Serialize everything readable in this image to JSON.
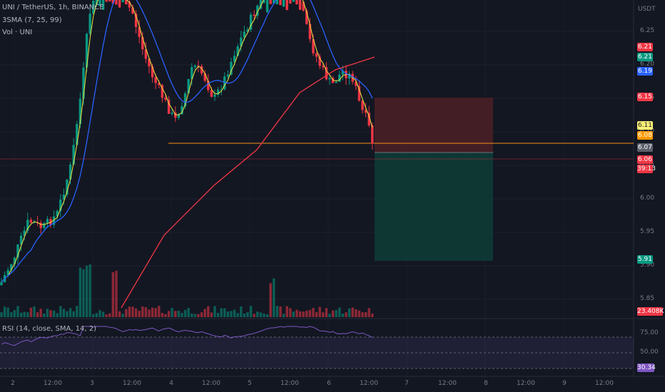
{
  "header": {
    "symbol_line": "UNI / TetherUS, 1h, BINANCE",
    "sma_line": "3SMA (7, 25, 99)",
    "vol_line": "Vol · UNI",
    "rsi_line": "RSI (14, close, SMA, 14, 2)"
  },
  "price_axis": {
    "currency": "USDT",
    "ticks": [
      "6.25",
      "6.20",
      "6.15",
      "6.10",
      "6.05",
      "6.00",
      "5.95",
      "5.90",
      "5.85"
    ]
  },
  "price_tags": [
    {
      "label": "6.21",
      "color": "#f23645"
    },
    {
      "label": "6.21",
      "color": "#089981"
    },
    {
      "label": "6.19",
      "color": "#2962ff"
    },
    {
      "label": "6.15",
      "color": "#f23645"
    },
    {
      "label": "6.11",
      "color": "#fff176"
    },
    {
      "label": "6.08",
      "color": "#ff9800"
    },
    {
      "label": "6.07",
      "color": "#5d606b"
    },
    {
      "label": "6.06",
      "color": "#f23645"
    },
    {
      "label": "39:13",
      "color": "#f23645"
    },
    {
      "label": "5.91",
      "color": "#089981"
    },
    {
      "label": "23.408K",
      "color": "#f23645"
    }
  ],
  "rsi_axis": {
    "ticks": [
      "75.00",
      "50.00"
    ],
    "value": "30.34",
    "value_color": "#7e57c2"
  },
  "time_axis": {
    "ticks": [
      "2",
      "12:00",
      "3",
      "12:00",
      "4",
      "12:00",
      "5",
      "12:00",
      "6",
      "12:00",
      "7",
      "12:00",
      "8",
      "12:00",
      "9",
      "12:00"
    ]
  },
  "colors": {
    "up": "#089981",
    "down": "#f23645",
    "sma7": "#f0e442",
    "sma25": "#2962ff",
    "sma99": "#f23645",
    "rsi": "#7e57c2",
    "long_target": "#0e3b36",
    "long_stop": "#4a1f26",
    "entry_line": "#f7931a"
  },
  "chart_data": {
    "type": "candlestick",
    "title": "UNI / TetherUS, 1h, BINANCE",
    "ylim": [
      5.83,
      6.28
    ],
    "indicators": [
      "SMA 7",
      "SMA 25",
      "SMA 99",
      "Volume",
      "RSI 14"
    ],
    "last_price": 6.06,
    "levels": {
      "long_position_stop": 6.15,
      "long_position_entry": 6.07,
      "long_position_target": 5.91,
      "horizontal_line": 6.08
    },
    "rsi_last": 30.34,
    "volume_last": "23.408K"
  }
}
